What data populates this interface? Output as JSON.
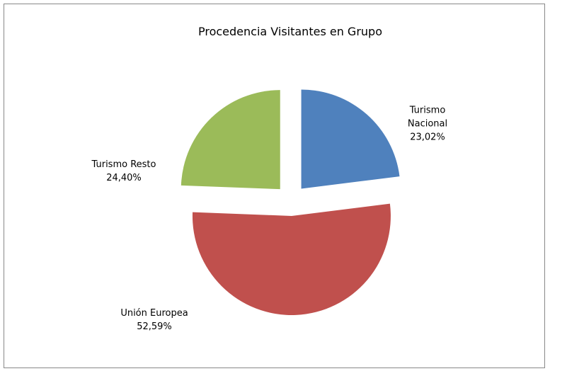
{
  "chart_data": {
    "type": "pie",
    "title": "Procedencia Visitantes en Grupo",
    "categories": [
      "Turismo Nacional",
      "Unión Europea",
      "Turismo Resto"
    ],
    "values": [
      23.02,
      52.59,
      24.4
    ],
    "value_labels": [
      "23,02%",
      "52,59%",
      "24,40%"
    ],
    "colors": [
      "#4f81bd",
      "#c0504d",
      "#9bbb59"
    ],
    "exploded": true
  }
}
